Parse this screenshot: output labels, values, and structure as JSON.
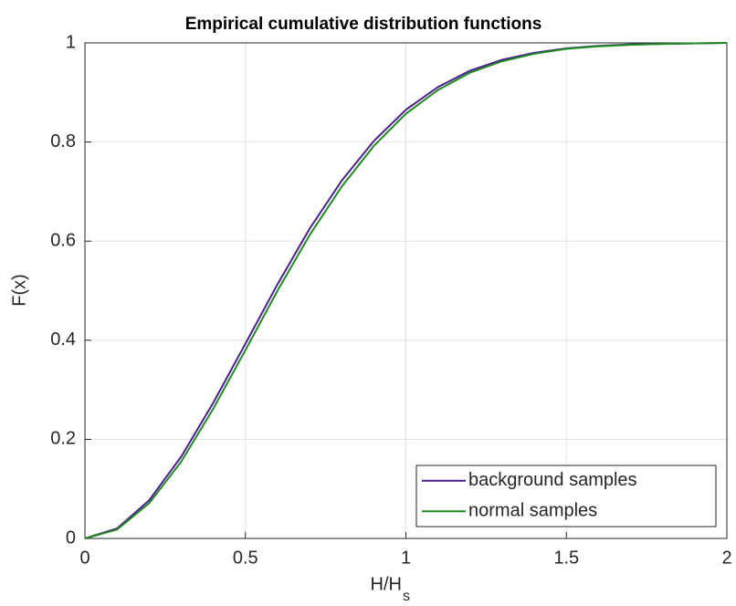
{
  "chart_data": {
    "type": "line",
    "title": "Empirical cumulative distribution functions",
    "xlabel": "H/H",
    "xlabel_subscript": "s",
    "ylabel": "F(x)",
    "x": [
      0,
      0.1,
      0.2,
      0.3,
      0.4,
      0.5,
      0.6,
      0.7,
      0.8,
      0.9,
      1.0,
      1.1,
      1.2,
      1.3,
      1.4,
      1.5,
      1.6,
      1.7,
      1.8,
      1.9,
      2.0
    ],
    "series": [
      {
        "name": "background samples",
        "color": "#4b1e8f",
        "values": [
          0,
          0.02,
          0.077,
          0.165,
          0.274,
          0.393,
          0.513,
          0.625,
          0.722,
          0.802,
          0.865,
          0.911,
          0.944,
          0.966,
          0.98,
          0.989,
          0.994,
          0.997,
          0.998,
          0.999,
          1.0
        ]
      },
      {
        "name": "normal samples",
        "color": "#1f8a1f",
        "values": [
          0,
          0.018,
          0.071,
          0.155,
          0.262,
          0.38,
          0.5,
          0.612,
          0.71,
          0.792,
          0.857,
          0.905,
          0.94,
          0.963,
          0.978,
          0.988,
          0.993,
          0.996,
          0.998,
          0.999,
          1.0
        ]
      }
    ],
    "xlim": [
      0,
      2
    ],
    "xticks": [
      0,
      0.5,
      1,
      1.5,
      2
    ],
    "ylim": [
      0,
      1
    ],
    "yticks": [
      0,
      0.2,
      0.4,
      0.6,
      0.8,
      1
    ],
    "grid": true,
    "legend": "lower right"
  }
}
